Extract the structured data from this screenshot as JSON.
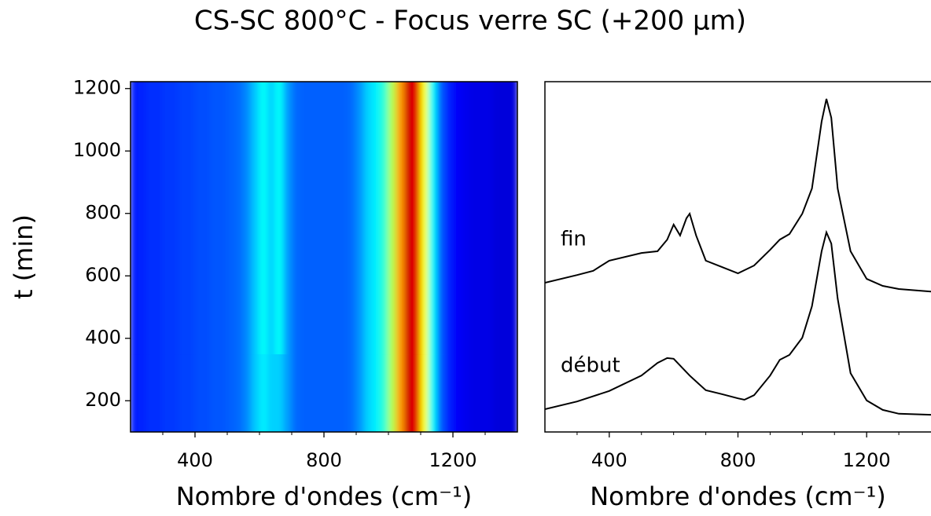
{
  "title": "CS-SC 800°C - Focus verre SC (+200 µm)",
  "chart_data": [
    {
      "type": "heatmap",
      "colormap": "jet",
      "zlim": [
        0,
        1
      ],
      "xlabel": "Nombre d'ondes (cm⁻¹)",
      "ylabel": "t (min)",
      "xlim": [
        200,
        1400
      ],
      "ylim": [
        100,
        1222
      ],
      "xticks": [
        400,
        800,
        1200
      ],
      "xminorticks": [
        300,
        500,
        600,
        700,
        900,
        1000,
        1100,
        1300
      ],
      "yticks": [
        200,
        400,
        600,
        800,
        1000,
        1200
      ],
      "x_bins": [
        200,
        225,
        250,
        275,
        300,
        325,
        350,
        375,
        400,
        425,
        450,
        475,
        500,
        525,
        550,
        575,
        600,
        625,
        650,
        675,
        700,
        725,
        750,
        775,
        800,
        825,
        850,
        875,
        900,
        925,
        950,
        975,
        1000,
        1025,
        1050,
        1075,
        1100,
        1125,
        1150,
        1175,
        1200,
        1225,
        1250,
        1275,
        1300,
        1325,
        1350,
        1375,
        1400
      ],
      "y_bins": [
        100,
        350,
        1222
      ],
      "values": [
        [
          0.15,
          0.16,
          0.17,
          0.17,
          0.18,
          0.18,
          0.19,
          0.19,
          0.2,
          0.2,
          0.21,
          0.21,
          0.22,
          0.23,
          0.26,
          0.32,
          0.36,
          0.33,
          0.33,
          0.28,
          0.23,
          0.22,
          0.22,
          0.22,
          0.22,
          0.22,
          0.22,
          0.23,
          0.27,
          0.33,
          0.36,
          0.42,
          0.55,
          0.72,
          0.92,
          0.9,
          0.62,
          0.38,
          0.22,
          0.16,
          0.12,
          0.11,
          0.1,
          0.1,
          0.1,
          0.09,
          0.09,
          0.09
        ],
        [
          0.15,
          0.16,
          0.17,
          0.17,
          0.18,
          0.18,
          0.19,
          0.19,
          0.2,
          0.2,
          0.21,
          0.21,
          0.22,
          0.23,
          0.26,
          0.32,
          0.38,
          0.33,
          0.38,
          0.28,
          0.23,
          0.22,
          0.22,
          0.22,
          0.22,
          0.22,
          0.22,
          0.23,
          0.27,
          0.33,
          0.36,
          0.42,
          0.55,
          0.72,
          0.92,
          0.9,
          0.62,
          0.38,
          0.22,
          0.16,
          0.12,
          0.11,
          0.1,
          0.1,
          0.1,
          0.09,
          0.09,
          0.09
        ]
      ]
    },
    {
      "type": "line",
      "color": "#000000",
      "xlabel": "Nombre d'ondes (cm⁻¹)",
      "xlim": [
        200,
        1400
      ],
      "ylim": [
        0,
        100
      ],
      "xticks": [
        400,
        800,
        1200
      ],
      "xminorticks": [
        300,
        500,
        600,
        700,
        900,
        1000,
        1100,
        1300
      ],
      "series": [
        {
          "name": "fin",
          "x": [
            200,
            300,
            350,
            400,
            500,
            550,
            580,
            600,
            620,
            640,
            650,
            670,
            700,
            750,
            800,
            850,
            900,
            930,
            960,
            1000,
            1030,
            1060,
            1075,
            1090,
            1110,
            1150,
            1200,
            1250,
            1300,
            1400
          ],
          "values": [
            42.6,
            44.8,
            46.0,
            48.9,
            51.1,
            51.6,
            54.9,
            59.2,
            56.1,
            61.0,
            62.3,
            56.1,
            48.9,
            47.1,
            45.3,
            47.5,
            52.0,
            54.9,
            56.5,
            62.3,
            69.5,
            88.6,
            95.1,
            89.7,
            69.5,
            51.6,
            43.7,
            41.7,
            40.8,
            40.1
          ]
        },
        {
          "name": "début",
          "x": [
            200,
            300,
            400,
            500,
            550,
            580,
            600,
            650,
            700,
            750,
            800,
            820,
            850,
            900,
            930,
            960,
            1000,
            1030,
            1060,
            1075,
            1090,
            1110,
            1150,
            1200,
            1250,
            1300,
            1400
          ],
          "values": [
            6.5,
            8.7,
            11.7,
            16.1,
            19.7,
            21.1,
            20.9,
            16.1,
            11.9,
            10.8,
            9.6,
            9.2,
            10.5,
            16.1,
            20.6,
            22.0,
            26.9,
            35.9,
            51.6,
            57.0,
            53.8,
            38.1,
            16.8,
            9.0,
            6.3,
            5.2,
            4.9
          ]
        }
      ]
    }
  ]
}
